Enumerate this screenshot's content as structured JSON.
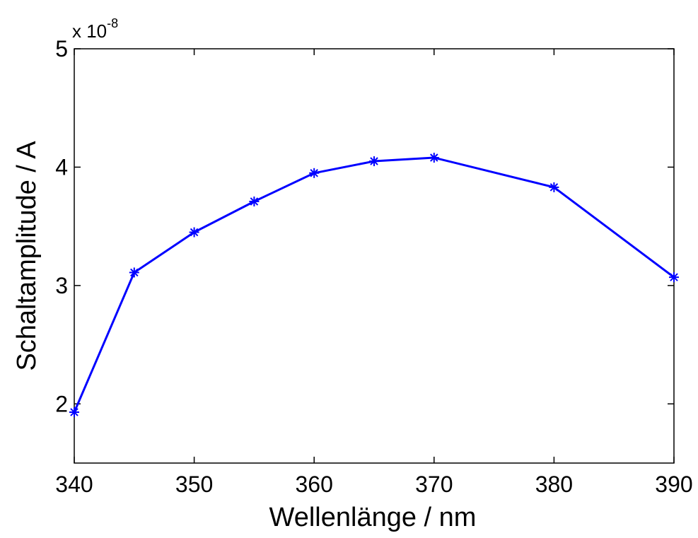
{
  "chart_data": {
    "type": "line",
    "title": "",
    "xlabel": "Wellenlänge / nm",
    "ylabel": "Schaltamplitude / A",
    "exponent_base": "x 10",
    "exponent_power": "-8",
    "xlim": [
      340,
      390
    ],
    "ylim": [
      1.5,
      5
    ],
    "x_ticks": [
      340,
      350,
      360,
      370,
      380,
      390
    ],
    "y_ticks": [
      2,
      3,
      4,
      5
    ],
    "grid": false,
    "legend": "none",
    "marker": "asterisk",
    "line_color": "#0000ff",
    "series": [
      {
        "x": [
          340,
          345,
          350,
          355,
          360,
          365,
          370,
          380,
          390
        ],
        "values": [
          1.93,
          3.11,
          3.45,
          3.71,
          3.95,
          4.05,
          4.08,
          3.83,
          3.07
        ]
      }
    ]
  }
}
